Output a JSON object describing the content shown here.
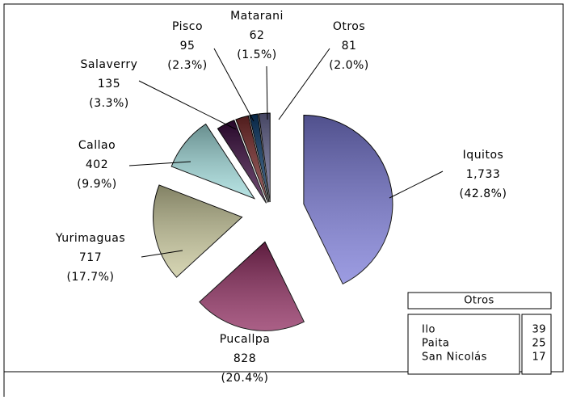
{
  "chart_data": {
    "type": "pie",
    "categories": [
      "Iquitos",
      "Pucallpa",
      "Yurimaguas",
      "Callao",
      "Salaverry",
      "Pisco",
      "Matarani",
      "Otros"
    ],
    "values": [
      1733,
      828,
      717,
      402,
      135,
      95,
      62,
      81
    ],
    "value_labels": [
      "1,733",
      "828",
      "717",
      "402",
      "135",
      "95",
      "62",
      "81"
    ],
    "percent_labels": [
      "(42.8%)",
      "(20.4%)",
      "(17.7%)",
      "(9.9%)",
      "(3.3%)",
      "(2.3%)",
      "(1.5%)",
      "(2.0%)"
    ],
    "colors": [
      "#7b7bd8",
      "#8e2a5e",
      "#c8c79a",
      "#9fdada",
      "#3a0a3e",
      "#7a2a2a",
      "#0b3a6a",
      "#6a6a96"
    ],
    "breakdown": {
      "title": "Otros",
      "categories": [
        "Ilo",
        "Paita",
        "San Nicolás"
      ],
      "values": [
        39,
        25,
        17
      ]
    }
  }
}
